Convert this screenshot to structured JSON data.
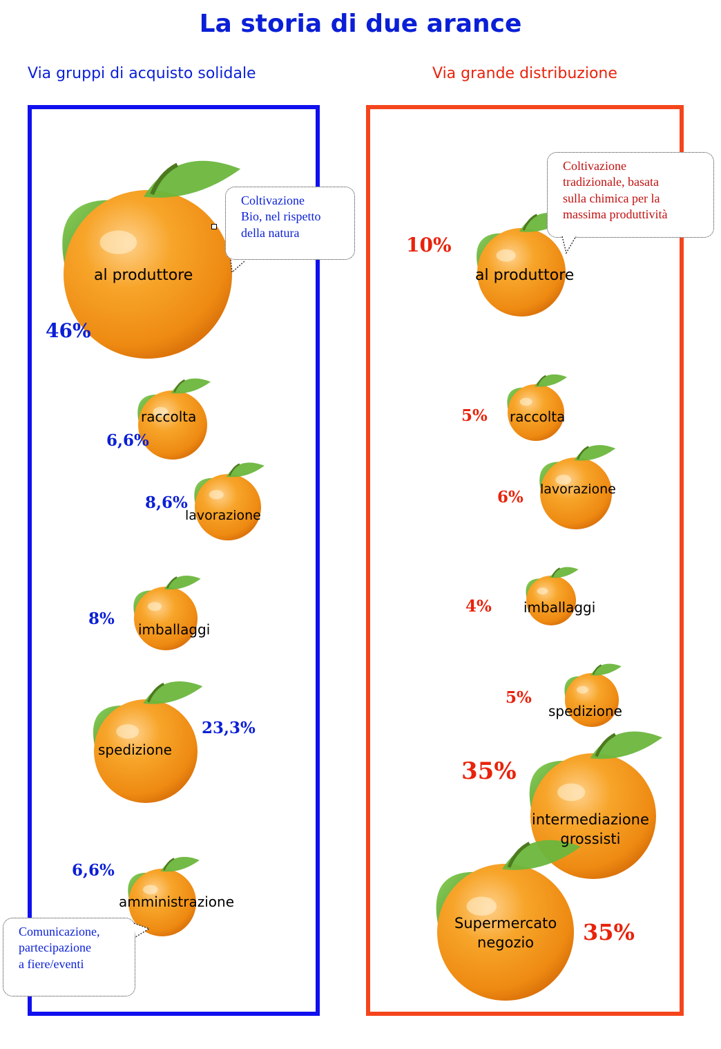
{
  "title": "La storia di due arance",
  "colors": {
    "left": "#0a1fd6",
    "right": "#e8230c",
    "panel_left": "#1010ee",
    "panel_right": "#f4451c",
    "orange": "#f39a1a",
    "leaf": "#5aa52e"
  },
  "left": {
    "heading": "Via gruppi di acquisto solidale",
    "bubble_top": [
      "Coltivazione",
      "Bio, nel rispetto",
      "della natura"
    ],
    "bubble_bottom": [
      "Comunicazione,",
      "partecipazione",
      "a fiere/eventi"
    ],
    "steps": [
      {
        "label": "al produttore",
        "percent": "46%",
        "value": 46
      },
      {
        "label": "raccolta",
        "percent": "6,6%",
        "value": 6.6
      },
      {
        "label": "lavorazione",
        "percent": "8,6%",
        "value": 8.6
      },
      {
        "label": "imballaggi",
        "percent": "8%",
        "value": 8
      },
      {
        "label": "spedizione",
        "percent": "23,3%",
        "value": 23.3
      },
      {
        "label": "amministrazione",
        "percent": "6,6%",
        "value": 6.6
      }
    ]
  },
  "right": {
    "heading": "Via grande distribuzione",
    "bubble_top": [
      "Coltivazione",
      "tradizionale, basata",
      "sulla chimica per la",
      "massima  produttività"
    ],
    "steps": [
      {
        "label": "al produttore",
        "percent": "10%",
        "value": 10
      },
      {
        "label": "raccolta",
        "percent": "5%",
        "value": 5
      },
      {
        "label": "lavorazione",
        "percent": "6%",
        "value": 6
      },
      {
        "label": "imballaggi",
        "percent": "4%",
        "value": 4
      },
      {
        "label": "spedizione",
        "percent": "5%",
        "value": 5
      },
      {
        "label": "intermediazione grossisti",
        "label_lines": [
          "intermediazione",
          "grossisti"
        ],
        "percent": "35%",
        "value": 35
      },
      {
        "label": "Supermercato negozio",
        "label_lines": [
          "Supermercato",
          "negozio"
        ],
        "percent": "35%",
        "value": 35
      }
    ]
  }
}
